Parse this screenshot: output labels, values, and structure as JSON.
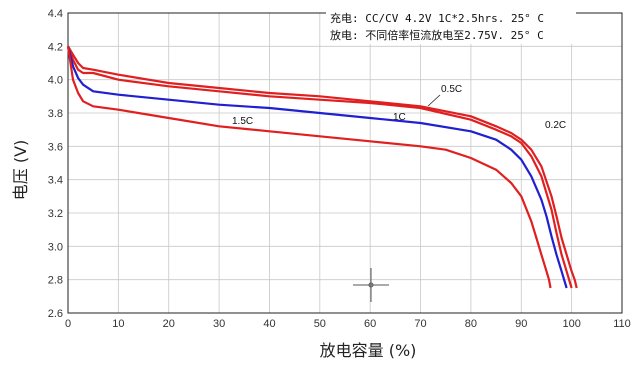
{
  "chart_data": {
    "type": "line",
    "xlabel": "放电容量 (%)",
    "ylabel": "电压 (V)",
    "xlim": [
      0,
      110
    ],
    "ylim": [
      2.6,
      4.4
    ],
    "x_ticks": [
      "0",
      "10",
      "20",
      "30",
      "40",
      "50",
      "60",
      "70",
      "80",
      "90",
      "100",
      "110"
    ],
    "y_ticks": [
      "2.6",
      "2.8",
      "3.0",
      "3.2",
      "3.4",
      "3.6",
      "3.8",
      "4.0",
      "4.2",
      "4.4"
    ],
    "grid": true,
    "annotations": {
      "charge": "充电: CC/CV 4.2V 1C*2.5hrs.  25° C",
      "discharge": "放电: 不同倍率恒流放电至2.75V. 25° C"
    },
    "series": [
      {
        "name": "0.2C",
        "color": "#e02020",
        "x": [
          0,
          1,
          2,
          3,
          5,
          10,
          20,
          30,
          40,
          50,
          60,
          70,
          80,
          85,
          88,
          90,
          92,
          94,
          96,
          97,
          98,
          99,
          100,
          100.6,
          101
        ],
        "y": [
          4.2,
          4.15,
          4.1,
          4.07,
          4.06,
          4.03,
          3.98,
          3.95,
          3.92,
          3.9,
          3.87,
          3.84,
          3.78,
          3.72,
          3.68,
          3.64,
          3.58,
          3.48,
          3.3,
          3.18,
          3.05,
          2.95,
          2.85,
          2.8,
          2.75
        ]
      },
      {
        "name": "0.5C",
        "color": "#e02020",
        "x": [
          0,
          1,
          2,
          3,
          5,
          10,
          20,
          30,
          40,
          50,
          60,
          70,
          80,
          85,
          88,
          90,
          92,
          94,
          96,
          97,
          98,
          99,
          100
        ],
        "y": [
          4.2,
          4.12,
          4.06,
          4.04,
          4.04,
          4.0,
          3.96,
          3.93,
          3.9,
          3.88,
          3.86,
          3.83,
          3.76,
          3.7,
          3.66,
          3.62,
          3.54,
          3.42,
          3.22,
          3.08,
          2.95,
          2.85,
          2.75
        ]
      },
      {
        "name": "1C",
        "color": "#2020d0",
        "x": [
          0,
          1,
          2,
          3,
          5,
          10,
          20,
          30,
          40,
          50,
          60,
          70,
          80,
          85,
          88,
          90,
          92,
          94,
          95,
          96,
          97,
          98,
          99
        ],
        "y": [
          4.2,
          4.08,
          4.01,
          3.97,
          3.93,
          3.91,
          3.88,
          3.85,
          3.83,
          3.8,
          3.77,
          3.74,
          3.69,
          3.64,
          3.58,
          3.52,
          3.42,
          3.28,
          3.18,
          3.06,
          2.95,
          2.85,
          2.75
        ]
      },
      {
        "name": "1.5C",
        "color": "#e02020",
        "x": [
          0,
          0.5,
          1,
          2,
          3,
          5,
          10,
          20,
          30,
          40,
          50,
          60,
          70,
          75,
          80,
          85,
          88,
          90,
          92,
          93,
          94,
          95,
          95.5,
          95.8
        ],
        "y": [
          4.2,
          4.1,
          4.0,
          3.92,
          3.87,
          3.84,
          3.82,
          3.77,
          3.72,
          3.69,
          3.66,
          3.63,
          3.6,
          3.58,
          3.53,
          3.46,
          3.38,
          3.3,
          3.15,
          3.05,
          2.95,
          2.85,
          2.8,
          2.75
        ]
      }
    ]
  }
}
